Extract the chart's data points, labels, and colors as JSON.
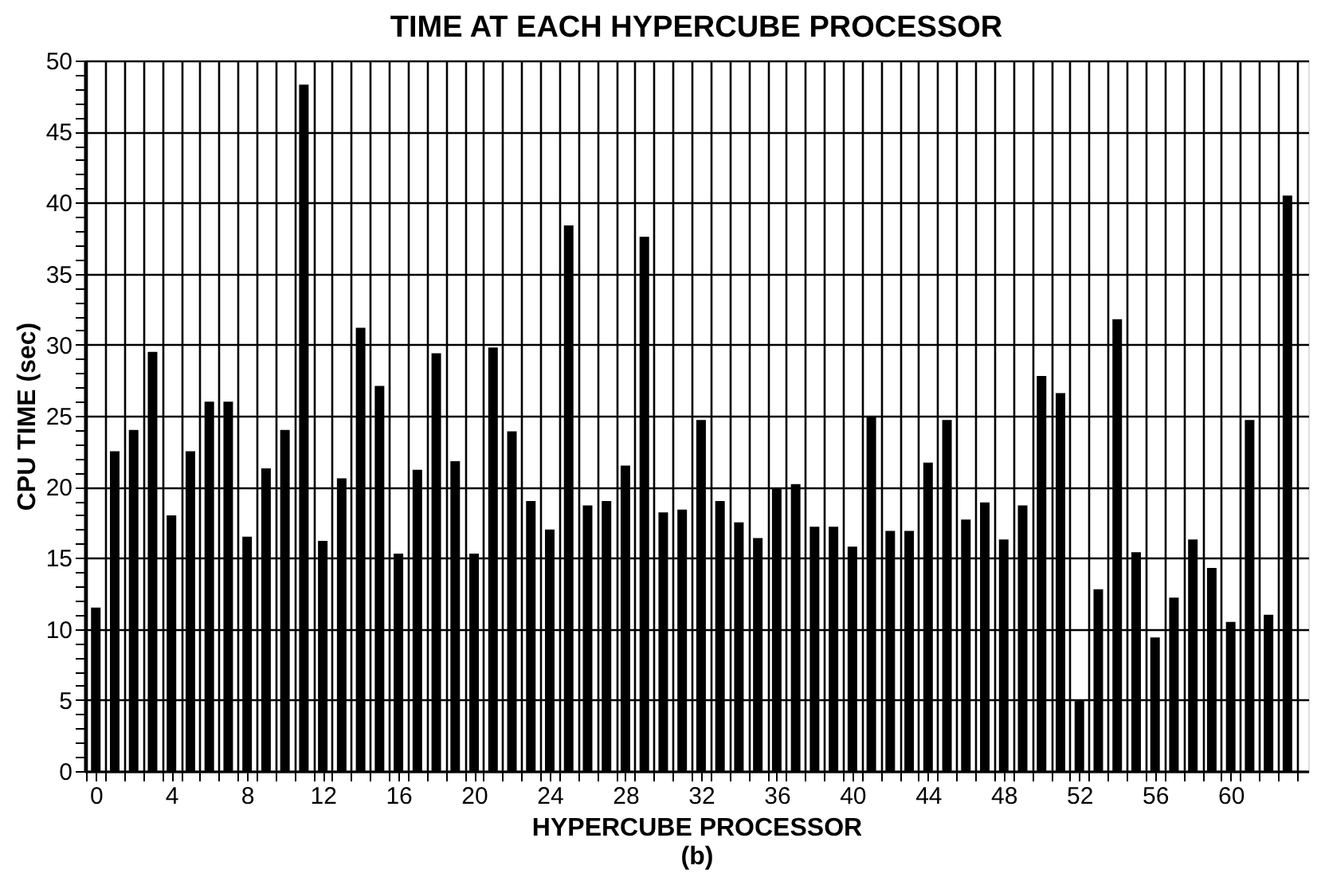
{
  "chart_data": {
    "type": "bar",
    "title": "TIME AT EACH HYPERCUBE PROCESSOR",
    "xlabel": "HYPERCUBE PROCESSOR",
    "ylabel": "CPU TIME (sec)",
    "annotations": [
      "(b)"
    ],
    "x": [
      0,
      1,
      2,
      3,
      4,
      5,
      6,
      7,
      8,
      9,
      10,
      11,
      12,
      13,
      14,
      15,
      16,
      17,
      18,
      19,
      20,
      21,
      22,
      23,
      24,
      25,
      26,
      27,
      28,
      29,
      30,
      31,
      32,
      33,
      34,
      35,
      36,
      37,
      38,
      39,
      40,
      41,
      42,
      43,
      44,
      45,
      46,
      47,
      48,
      49,
      50,
      51,
      52,
      53,
      54,
      55,
      56,
      57,
      58,
      59,
      60,
      61,
      62,
      63
    ],
    "values": [
      11.5,
      22.5,
      24,
      29.5,
      18,
      22.5,
      26,
      26,
      16.5,
      21.3,
      24,
      48.3,
      16.2,
      20.6,
      31.2,
      27.1,
      15.3,
      21.2,
      29.4,
      21.8,
      15.3,
      29.8,
      23.9,
      19,
      17,
      38.4,
      18.7,
      19,
      21.5,
      37.6,
      18.2,
      18.4,
      24.7,
      19,
      17.5,
      16.4,
      19.9,
      20.2,
      17.2,
      17.2,
      15.8,
      24.9,
      16.9,
      16.9,
      21.7,
      24.7,
      17.7,
      18.9,
      16.3,
      18.7,
      27.8,
      26.6,
      5,
      12.8,
      31.8,
      15.4,
      9.4,
      12.2,
      16.3,
      14.3,
      10.5,
      24.7,
      11,
      40.5
    ],
    "color": "#000000",
    "xlim": [
      -0.6,
      64.1
    ],
    "xticks": [
      0,
      4,
      8,
      12,
      16,
      20,
      24,
      28,
      32,
      36,
      40,
      44,
      48,
      52,
      56,
      60,
      {
        "value": -0.5,
        "label": null
      },
      {
        "value": 0.5,
        "label": null
      },
      {
        "value": 1.5,
        "label": null
      },
      {
        "value": 2.5,
        "label": null
      },
      {
        "value": 3.5,
        "label": null
      },
      {
        "value": 4.5,
        "label": null
      },
      {
        "value": 5.5,
        "label": null
      },
      {
        "value": 6.5,
        "label": null
      },
      {
        "value": 7.5,
        "label": null
      },
      {
        "value": 8.5,
        "label": null
      },
      {
        "value": 9.5,
        "label": null
      },
      {
        "value": 10.5,
        "label": null
      },
      {
        "value": 11.5,
        "label": null
      },
      {
        "value": 12.5,
        "label": null
      },
      {
        "value": 13.5,
        "label": null
      },
      {
        "value": 14.5,
        "label": null
      },
      {
        "value": 15.5,
        "label": null
      },
      {
        "value": 16.5,
        "label": null
      },
      {
        "value": 17.5,
        "label": null
      },
      {
        "value": 18.5,
        "label": null
      },
      {
        "value": 19.5,
        "label": null
      },
      {
        "value": 20.5,
        "label": null
      },
      {
        "value": 21.5,
        "label": null
      },
      {
        "value": 22.5,
        "label": null
      },
      {
        "value": 23.5,
        "label": null
      },
      {
        "value": 24.5,
        "label": null
      },
      {
        "value": 25.5,
        "label": null
      },
      {
        "value": 26.5,
        "label": null
      },
      {
        "value": 27.5,
        "label": null
      },
      {
        "value": 28.5,
        "label": null
      },
      {
        "value": 29.5,
        "label": null
      },
      {
        "value": 30.5,
        "label": null
      },
      {
        "value": 31.5,
        "label": null
      },
      {
        "value": 32.5,
        "label": null
      },
      {
        "value": 33.5,
        "label": null
      },
      {
        "value": 34.5,
        "label": null
      },
      {
        "value": 35.5,
        "label": null
      },
      {
        "value": 36.5,
        "label": null
      },
      {
        "value": 37.5,
        "label": null
      },
      {
        "value": 38.5,
        "label": null
      },
      {
        "value": 39.5,
        "label": null
      },
      {
        "value": 40.5,
        "label": null
      },
      {
        "value": 41.5,
        "label": null
      },
      {
        "value": 42.5,
        "label": null
      },
      {
        "value": 43.5,
        "label": null
      },
      {
        "value": 44.5,
        "label": null
      },
      {
        "value": 45.5,
        "label": null
      },
      {
        "value": 46.5,
        "label": null
      },
      {
        "value": 47.5,
        "label": null
      },
      {
        "value": 48.5,
        "label": null
      },
      {
        "value": 49.5,
        "label": null
      },
      {
        "value": 50.5,
        "label": null
      },
      {
        "value": 51.5,
        "label": null
      },
      {
        "value": 52.5,
        "label": null
      },
      {
        "value": 53.5,
        "label": null
      },
      {
        "value": 54.5,
        "label": null
      },
      {
        "value": 55.5,
        "label": null
      },
      {
        "value": 56.5,
        "label": null
      },
      {
        "value": 57.5,
        "label": null
      },
      {
        "value": 58.5,
        "label": null
      },
      {
        "value": 59.5,
        "label": null
      },
      {
        "value": 60.5,
        "label": null
      },
      {
        "value": 61.5,
        "label": null
      },
      {
        "value": 62.5,
        "label": null
      },
      {
        "value": 63.5,
        "label": null
      }
    ],
    "ylim": [
      0,
      50
    ],
    "yticks": [
      0,
      5,
      10,
      15,
      20,
      25,
      30,
      35,
      40,
      45,
      50,
      {
        "value": 1,
        "label": null
      },
      {
        "value": 2,
        "label": null
      },
      {
        "value": 3,
        "label": null
      },
      {
        "value": 4,
        "label": null
      },
      {
        "value": 6,
        "label": null
      },
      {
        "value": 7,
        "label": null
      },
      {
        "value": 8,
        "label": null
      },
      {
        "value": 9,
        "label": null
      },
      {
        "value": 11,
        "label": null
      },
      {
        "value": 12,
        "label": null
      },
      {
        "value": 13,
        "label": null
      },
      {
        "value": 14,
        "label": null
      },
      {
        "value": 16,
        "label": null
      },
      {
        "value": 17,
        "label": null
      },
      {
        "value": 18,
        "label": null
      },
      {
        "value": 19,
        "label": null
      },
      {
        "value": 21,
        "label": null
      },
      {
        "value": 22,
        "label": null
      },
      {
        "value": 23,
        "label": null
      },
      {
        "value": 24,
        "label": null
      },
      {
        "value": 26,
        "label": null
      },
      {
        "value": 27,
        "label": null
      },
      {
        "value": 28,
        "label": null
      },
      {
        "value": 29,
        "label": null
      },
      {
        "value": 31,
        "label": null
      },
      {
        "value": 32,
        "label": null
      },
      {
        "value": 33,
        "label": null
      },
      {
        "value": 34,
        "label": null
      },
      {
        "value": 36,
        "label": null
      },
      {
        "value": 37,
        "label": null
      },
      {
        "value": 38,
        "label": null
      },
      {
        "value": 39,
        "label": null
      },
      {
        "value": 41,
        "label": null
      },
      {
        "value": 42,
        "label": null
      },
      {
        "value": 43,
        "label": null
      },
      {
        "value": 44,
        "label": null
      },
      {
        "value": 46,
        "label": null
      },
      {
        "value": 47,
        "label": null
      },
      {
        "value": 48,
        "label": null
      },
      {
        "value": 49,
        "label": null
      }
    ],
    "grid": true
  }
}
